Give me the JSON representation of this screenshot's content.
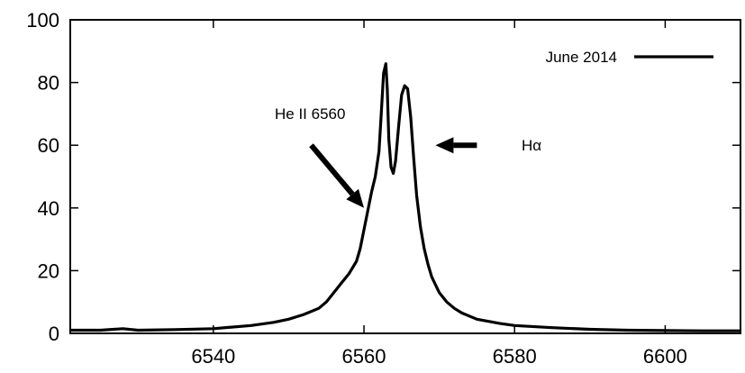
{
  "chart_data": {
    "type": "line",
    "title": "",
    "xlabel": "",
    "ylabel": "",
    "xlim": [
      6521,
      6610
    ],
    "ylim": [
      0,
      100
    ],
    "xticks": [
      6540,
      6560,
      6580,
      6600
    ],
    "yticks": [
      0,
      20,
      40,
      60,
      80,
      100
    ],
    "grid": false,
    "legend_position": "top-right",
    "series": [
      {
        "name": "June 2014",
        "color": "#000000",
        "x": [
          6521,
          6525,
          6528,
          6530,
          6535,
          6540,
          6545,
          6548,
          6550,
          6552,
          6554,
          6555,
          6556,
          6557,
          6558,
          6559,
          6559.5,
          6560,
          6560.5,
          6561,
          6561.5,
          6562,
          6562.3,
          6562.6,
          6562.9,
          6563.1,
          6563.3,
          6563.6,
          6563.9,
          6564.2,
          6564.6,
          6565.0,
          6565.4,
          6565.8,
          6566.2,
          6566.6,
          6567,
          6567.5,
          6568,
          6568.5,
          6569,
          6570,
          6571,
          6572,
          6573,
          6575,
          6578,
          6580,
          6585,
          6590,
          6595,
          6600,
          6605,
          6610
        ],
        "y": [
          1,
          1,
          1.5,
          1,
          1.2,
          1.5,
          2.5,
          3.5,
          4.5,
          6,
          8,
          10,
          13,
          16,
          19,
          23,
          27,
          33,
          39,
          45,
          50,
          58,
          70,
          83,
          86,
          78,
          62,
          53,
          51,
          55,
          66,
          76,
          79,
          78,
          69,
          56,
          44,
          34,
          27,
          22,
          18,
          13,
          10,
          8,
          6.5,
          4.5,
          3.2,
          2.5,
          1.8,
          1.3,
          1,
          0.9,
          0.8,
          0.8
        ]
      }
    ],
    "annotations": [
      {
        "text": "He II 6560",
        "arrow_from": [
          6553,
          60
        ],
        "arrow_to": [
          6560,
          40
        ]
      },
      {
        "text": "Hα",
        "arrow_from": [
          6575,
          60
        ],
        "arrow_to": [
          6569.5,
          60
        ]
      }
    ]
  }
}
